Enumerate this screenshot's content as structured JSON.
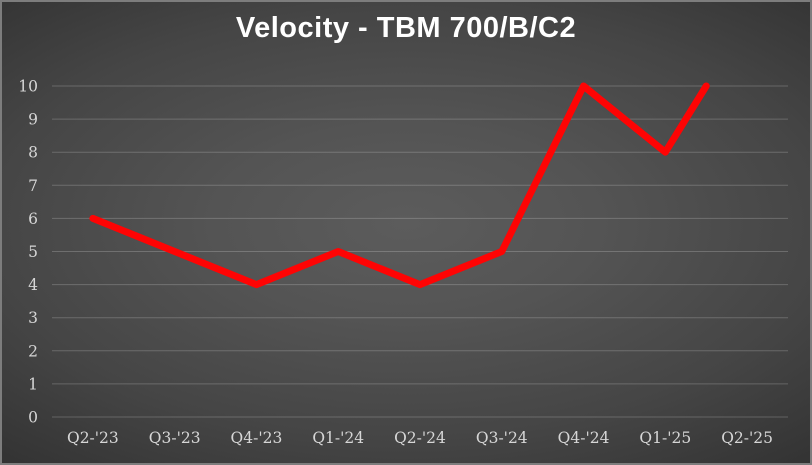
{
  "title": "Velocity - TBM 700/B/C2",
  "colors": {
    "line": "#fe0404",
    "gridline": "rgba(255,255,255,0.20)",
    "axis_text": "#d6d6d6",
    "title_text": "#ffffff",
    "border": "#7d7d7d",
    "background_center": "#5c5c5c",
    "background_edge": "#242424"
  },
  "chart_data": {
    "type": "line",
    "title": "Velocity - TBM 700/B/C2",
    "categories": [
      "Q2-'23",
      "Q3-'23",
      "Q4-'23",
      "Q1-'24",
      "Q2-'24",
      "Q3-'24",
      "Q4-'24",
      "Q1-'25",
      "Q2-'25"
    ],
    "series": [
      {
        "name": "Velocity",
        "values": [
          6,
          5,
          4,
          5,
          4,
          5,
          10,
          8,
          10
        ],
        "x_index": [
          0,
          1,
          2,
          3,
          4,
          5,
          6,
          7,
          7.5
        ]
      }
    ],
    "xlabel": "",
    "ylabel": "",
    "ylim": [
      0,
      10
    ],
    "ytick_step": 1,
    "grid": "horizontal",
    "legend": "none"
  }
}
